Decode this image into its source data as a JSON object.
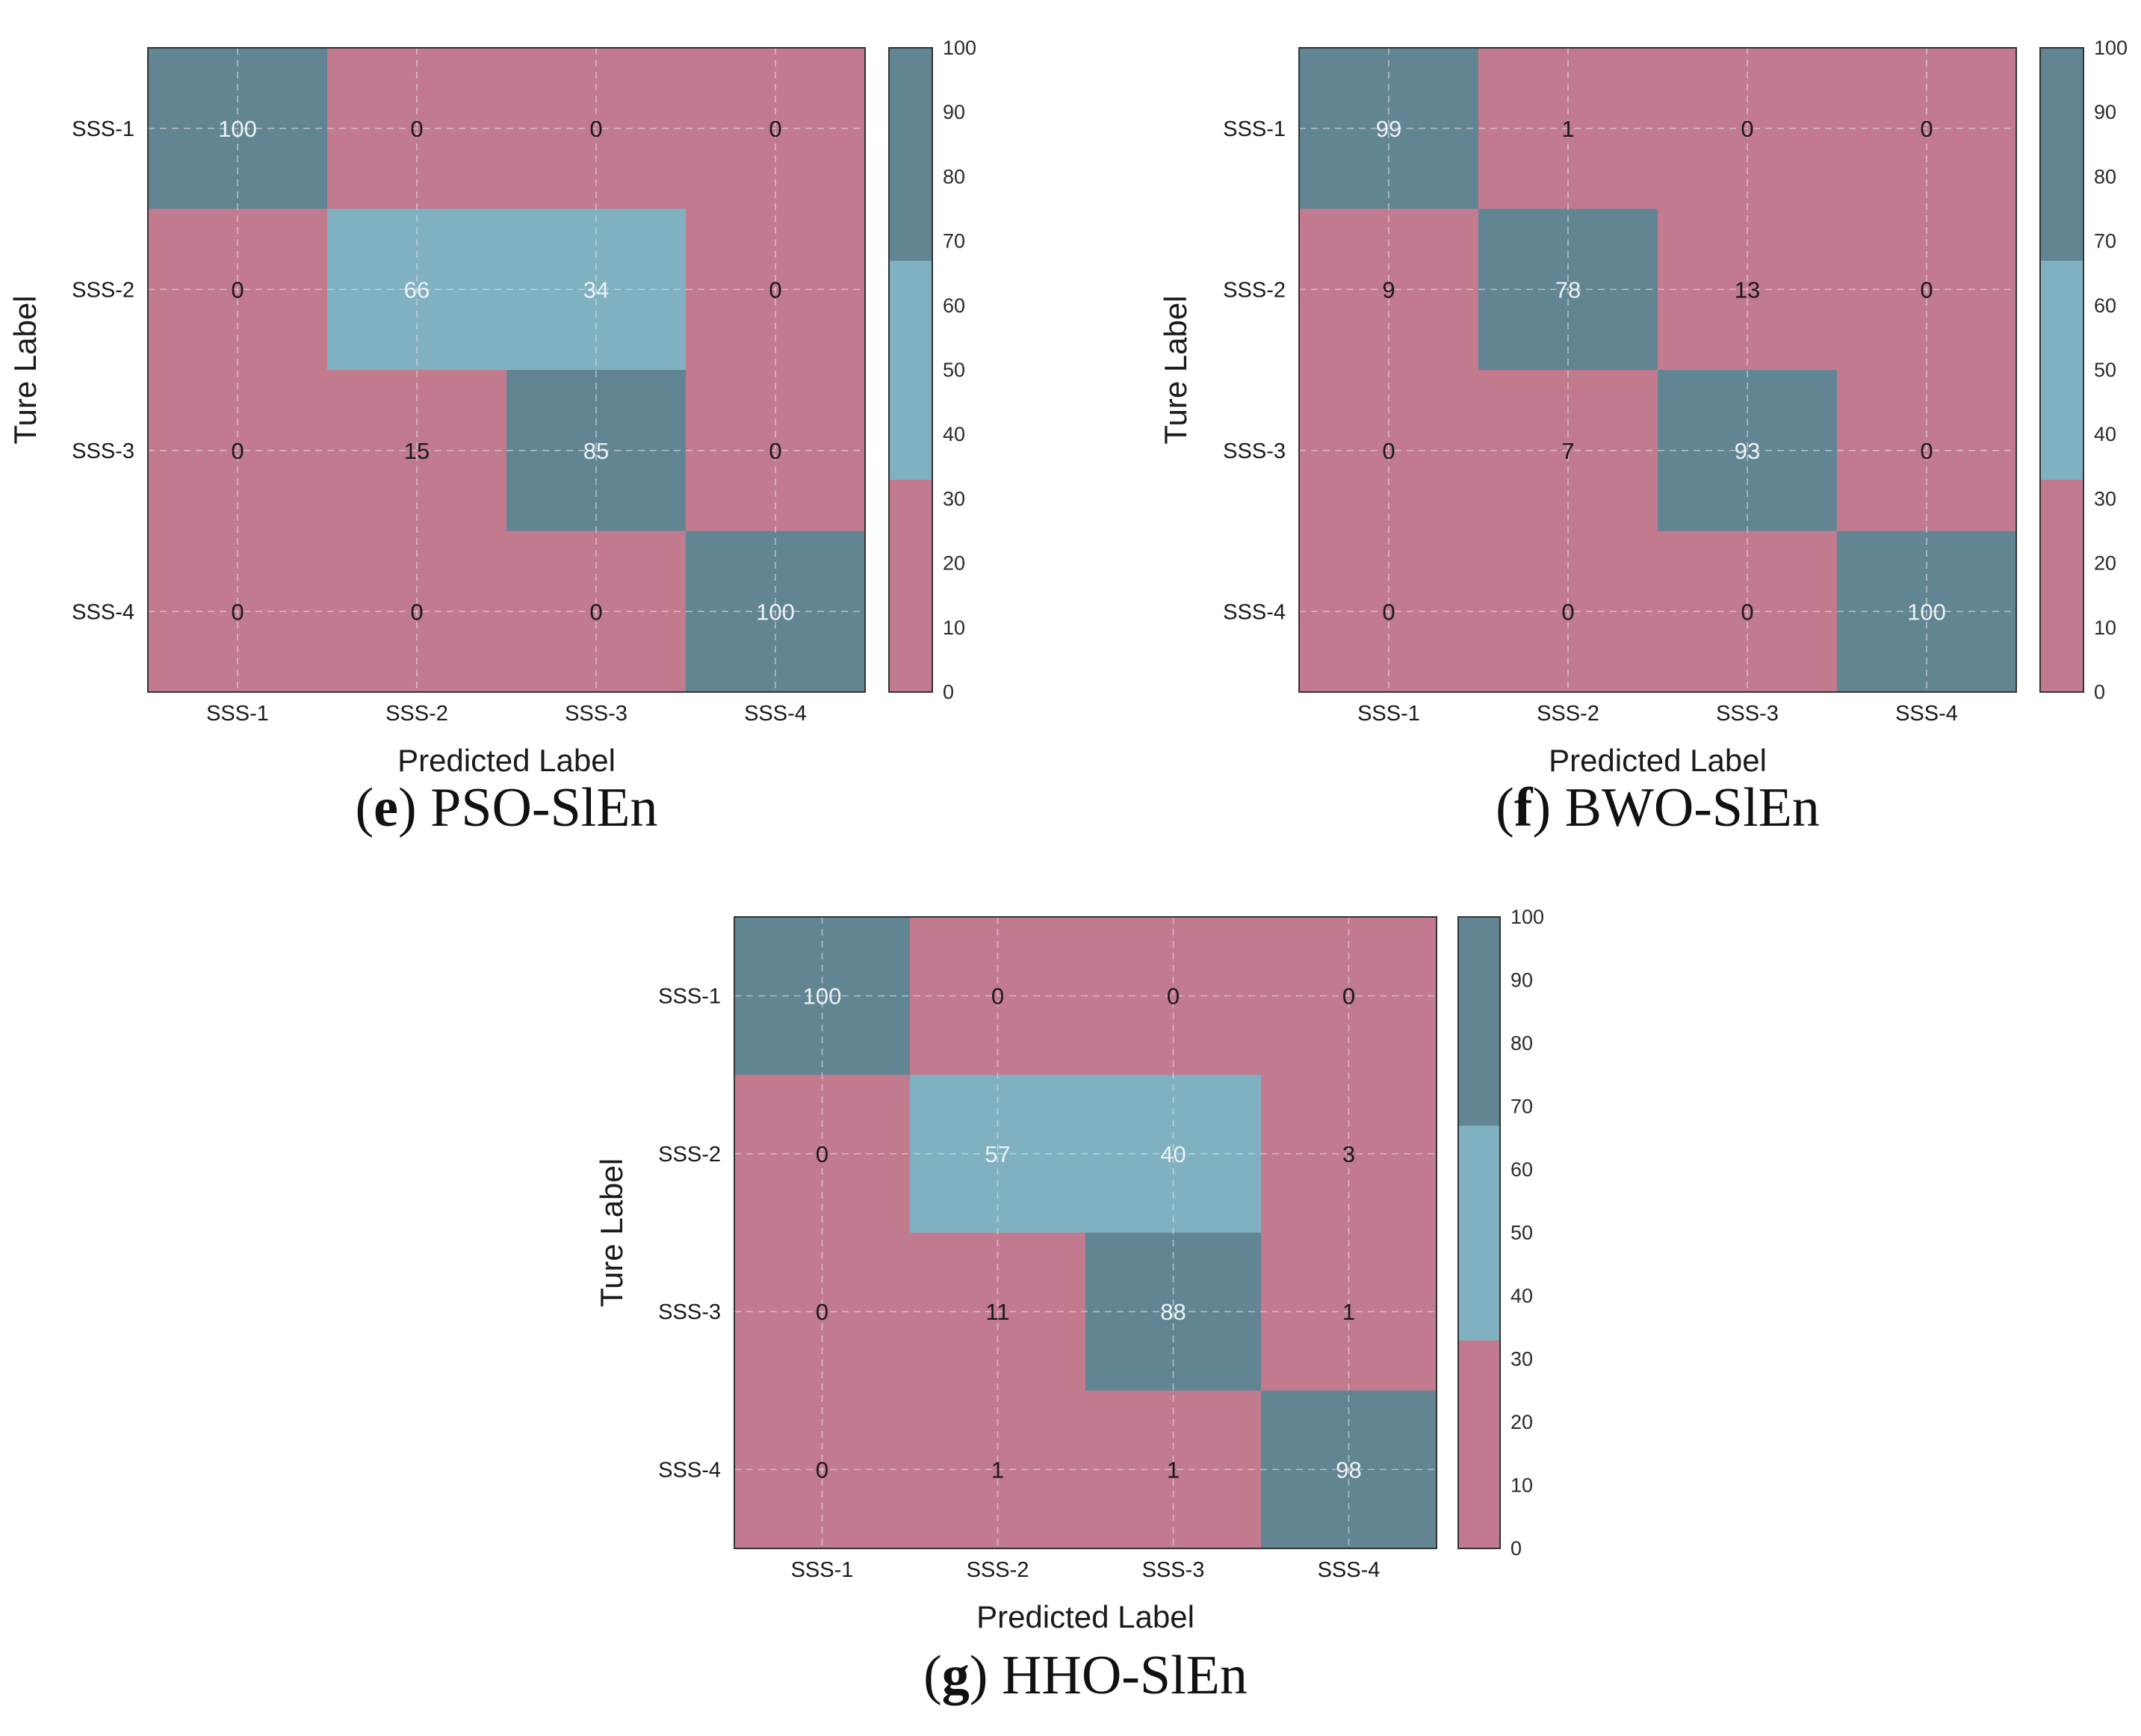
{
  "colors": {
    "low": "#c27a8f",
    "mid": "#7fb1c1",
    "high": "#628594",
    "text_dark": "#1a1a1a",
    "text_light": "#eef2f4",
    "grid": "#e6e6e6"
  },
  "chart_data": [
    {
      "type": "heatmap",
      "panel_letter": "e",
      "panel_name": "PSO-SlEn",
      "caption": "(e) PSO-SlEn",
      "xlabel": "Predicted Label",
      "ylabel": "Ture Label",
      "x_categories": [
        "SSS-1",
        "SSS-2",
        "SSS-3",
        "SSS-4"
      ],
      "y_categories": [
        "SSS-1",
        "SSS-2",
        "SSS-3",
        "SSS-4"
      ],
      "matrix": [
        [
          100,
          0,
          0,
          0
        ],
        [
          0,
          66,
          34,
          0
        ],
        [
          0,
          15,
          85,
          0
        ],
        [
          0,
          0,
          0,
          100
        ]
      ],
      "colorbar_ticks": [
        "100",
        "90",
        "80",
        "70",
        "60",
        "50",
        "40",
        "30",
        "20",
        "10",
        "0"
      ],
      "colorbar_range": [
        0,
        100
      ],
      "color_bands": [
        {
          "from": 0,
          "to": 33,
          "color": "low"
        },
        {
          "from": 33,
          "to": 67,
          "color": "mid"
        },
        {
          "from": 67,
          "to": 100,
          "color": "high"
        }
      ]
    },
    {
      "type": "heatmap",
      "panel_letter": "f",
      "panel_name": "BWO-SlEn",
      "caption": "(f) BWO-SlEn",
      "xlabel": "Predicted Label",
      "ylabel": "Ture Label",
      "x_categories": [
        "SSS-1",
        "SSS-2",
        "SSS-3",
        "SSS-4"
      ],
      "y_categories": [
        "SSS-1",
        "SSS-2",
        "SSS-3",
        "SSS-4"
      ],
      "matrix": [
        [
          99,
          1,
          0,
          0
        ],
        [
          9,
          78,
          13,
          0
        ],
        [
          0,
          7,
          93,
          0
        ],
        [
          0,
          0,
          0,
          100
        ]
      ],
      "colorbar_ticks": [
        "100",
        "90",
        "80",
        "70",
        "60",
        "50",
        "40",
        "30",
        "20",
        "10",
        "0"
      ],
      "colorbar_range": [
        0,
        100
      ],
      "color_bands": [
        {
          "from": 0,
          "to": 33,
          "color": "low"
        },
        {
          "from": 33,
          "to": 67,
          "color": "mid"
        },
        {
          "from": 67,
          "to": 100,
          "color": "high"
        }
      ]
    },
    {
      "type": "heatmap",
      "panel_letter": "g",
      "panel_name": "HHO-SlEn",
      "caption": "(g) HHO-SlEn",
      "xlabel": "Predicted Label",
      "ylabel": "Ture Label",
      "x_categories": [
        "SSS-1",
        "SSS-2",
        "SSS-3",
        "SSS-4"
      ],
      "y_categories": [
        "SSS-1",
        "SSS-2",
        "SSS-3",
        "SSS-4"
      ],
      "matrix": [
        [
          100,
          0,
          0,
          0
        ],
        [
          0,
          57,
          40,
          3
        ],
        [
          0,
          11,
          88,
          1
        ],
        [
          0,
          1,
          1,
          98
        ]
      ],
      "colorbar_ticks": [
        "100",
        "90",
        "80",
        "70",
        "60",
        "50",
        "40",
        "30",
        "20",
        "10",
        "0"
      ],
      "colorbar_range": [
        0,
        100
      ],
      "color_bands": [
        {
          "from": 0,
          "to": 33,
          "color": "low"
        },
        {
          "from": 33,
          "to": 67,
          "color": "mid"
        },
        {
          "from": 67,
          "to": 100,
          "color": "high"
        }
      ]
    }
  ]
}
